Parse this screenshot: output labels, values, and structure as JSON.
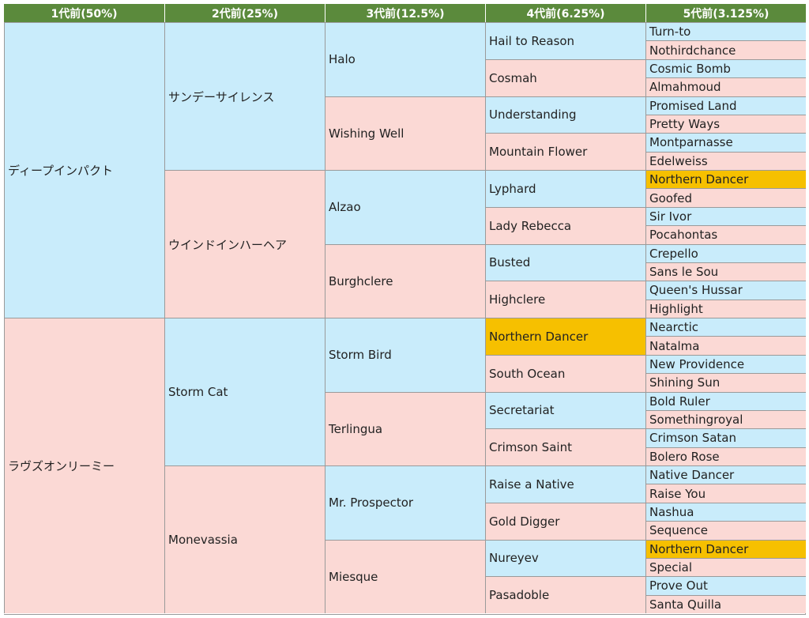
{
  "headers": [
    "1代前(50%)",
    "2代前(25%)",
    "3代前(12.5%)",
    "4代前(6.25%)",
    "5代前(3.125%)"
  ],
  "gen1": [
    "ディープインパクト",
    "ラヴズオンリーミー"
  ],
  "gen2": [
    "サンデーサイレンス",
    "ウインドインハーヘア",
    "Storm Cat",
    "Monevassia"
  ],
  "gen3": [
    "Halo",
    "Wishing Well",
    "Alzao",
    "Burghclere",
    "Storm Bird",
    "Terlingua",
    "Mr. Prospector",
    "Miesque"
  ],
  "gen4": [
    "Hail to Reason",
    "Cosmah",
    "Understanding",
    "Mountain Flower",
    "Lyphard",
    "Lady Rebecca",
    "Busted",
    "Highclere",
    "Northern Dancer",
    "South Ocean",
    "Secretariat",
    "Crimson Saint",
    "Raise a Native",
    "Gold Digger",
    "Nureyev",
    "Pasadoble"
  ],
  "gen5": [
    "Turn-to",
    "Nothirdchance",
    "Cosmic Bomb",
    "Almahmoud",
    "Promised Land",
    "Pretty Ways",
    "Montparnasse",
    "Edelweiss",
    "Northern Dancer",
    "Goofed",
    "Sir Ivor",
    "Pocahontas",
    "Crepello",
    "Sans le Sou",
    "Queen's Hussar",
    "Highlight",
    "Nearctic",
    "Natalma",
    "New Providence",
    "Shining Sun",
    "Bold Ruler",
    "Somethingroyal",
    "Crimson Satan",
    "Bolero Rose",
    "Native Dancer",
    "Raise You",
    "Nashua",
    "Sequence",
    "Northern Dancer",
    "Special",
    "Prove Out",
    "Santa Quilla"
  ],
  "highlighted_name": "Northern Dancer",
  "colors": {
    "header_bg": "#5b8a3c",
    "sire_bg": "#c9ecfb",
    "dam_bg": "#fbd9d5",
    "highlight_bg": "#f6c000"
  }
}
